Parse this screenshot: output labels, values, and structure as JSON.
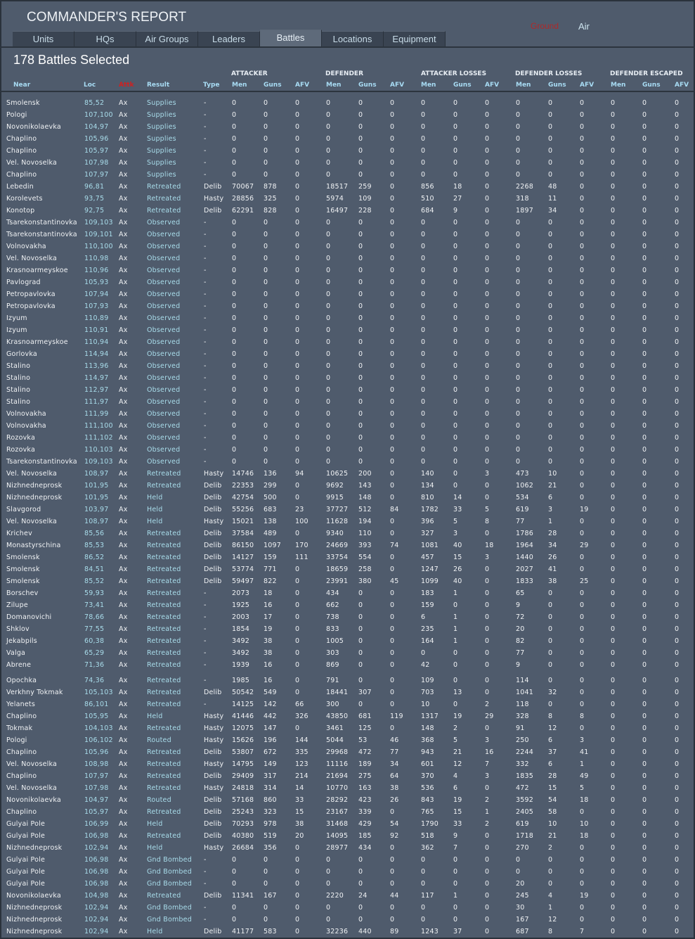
{
  "header": {
    "title": "COMMANDER'S REPORT",
    "toggle_ground": "Ground",
    "toggle_air": "Air",
    "colors": {
      "ground": "#b02828",
      "air": "#cfe6f0"
    }
  },
  "tabs": [
    "Units",
    "HQs",
    "Air Groups",
    "Leaders",
    "Battles",
    "Locations",
    "Equipment"
  ],
  "active_tab": "Battles",
  "selection_count": "178 Battles Selected",
  "column_groups": [
    "ATTACKER",
    "DEFENDER",
    "ATTACKER LOSSES",
    "DEFENDER LOSSES",
    "DEFENDER ESCAPED"
  ],
  "columns": [
    "Near",
    "Loc",
    "Attk",
    "Result",
    "Type",
    "Men",
    "Guns",
    "AFV",
    "Men",
    "Guns",
    "AFV",
    "Men",
    "Guns",
    "AFV",
    "Men",
    "Guns",
    "AFV",
    "Men",
    "Guns",
    "AFV"
  ],
  "rows": [
    [
      "Smolensk",
      "85,52",
      "Ax",
      "Supplies",
      "-",
      0,
      0,
      0,
      0,
      0,
      0,
      0,
      0,
      0,
      0,
      0,
      0,
      0,
      0,
      0
    ],
    [
      "Pologi",
      "107,100",
      "Ax",
      "Supplies",
      "-",
      0,
      0,
      0,
      0,
      0,
      0,
      0,
      0,
      0,
      0,
      0,
      0,
      0,
      0,
      0
    ],
    [
      "Novonikolaevka",
      "104,97",
      "Ax",
      "Supplies",
      "-",
      0,
      0,
      0,
      0,
      0,
      0,
      0,
      0,
      0,
      0,
      0,
      0,
      0,
      0,
      0
    ],
    [
      "Chaplino",
      "105,96",
      "Ax",
      "Supplies",
      "-",
      0,
      0,
      0,
      0,
      0,
      0,
      0,
      0,
      0,
      0,
      0,
      0,
      0,
      0,
      0
    ],
    [
      "Chaplino",
      "105,97",
      "Ax",
      "Supplies",
      "-",
      0,
      0,
      0,
      0,
      0,
      0,
      0,
      0,
      0,
      0,
      0,
      0,
      0,
      0,
      0
    ],
    [
      "Vel. Novoselka",
      "107,98",
      "Ax",
      "Supplies",
      "-",
      0,
      0,
      0,
      0,
      0,
      0,
      0,
      0,
      0,
      0,
      0,
      0,
      0,
      0,
      0
    ],
    [
      "Chaplino",
      "107,97",
      "Ax",
      "Supplies",
      "-",
      0,
      0,
      0,
      0,
      0,
      0,
      0,
      0,
      0,
      0,
      0,
      0,
      0,
      0,
      0
    ],
    [
      "Lebedin",
      "96,81",
      "Ax",
      "Retreated",
      "Delib",
      70067,
      878,
      0,
      18517,
      259,
      0,
      856,
      18,
      0,
      2268,
      48,
      0,
      0,
      0,
      0
    ],
    [
      "Korolevets",
      "93,75",
      "Ax",
      "Retreated",
      "Hasty",
      28856,
      325,
      0,
      5974,
      109,
      0,
      510,
      27,
      0,
      318,
      11,
      0,
      0,
      0,
      0
    ],
    [
      "Konotop",
      "92,75",
      "Ax",
      "Retreated",
      "Delib",
      62291,
      828,
      0,
      16497,
      228,
      0,
      684,
      9,
      0,
      1897,
      34,
      0,
      0,
      0,
      0
    ],
    [
      "Tsarekonstantinovka",
      "109,103",
      "Ax",
      "Observed",
      "-",
      0,
      0,
      0,
      0,
      0,
      0,
      0,
      0,
      0,
      0,
      0,
      0,
      0,
      0,
      0
    ],
    [
      "Tsarekonstantinovka",
      "109,101",
      "Ax",
      "Observed",
      "-",
      0,
      0,
      0,
      0,
      0,
      0,
      0,
      0,
      0,
      0,
      0,
      0,
      0,
      0,
      0
    ],
    [
      "Volnovakha",
      "110,100",
      "Ax",
      "Observed",
      "-",
      0,
      0,
      0,
      0,
      0,
      0,
      0,
      0,
      0,
      0,
      0,
      0,
      0,
      0,
      0
    ],
    [
      "Vel. Novoselka",
      "110,98",
      "Ax",
      "Observed",
      "-",
      0,
      0,
      0,
      0,
      0,
      0,
      0,
      0,
      0,
      0,
      0,
      0,
      0,
      0,
      0
    ],
    [
      "Krasnoarmeyskoe",
      "110,96",
      "Ax",
      "Observed",
      "-",
      0,
      0,
      0,
      0,
      0,
      0,
      0,
      0,
      0,
      0,
      0,
      0,
      0,
      0,
      0
    ],
    [
      "Pavlograd",
      "105,93",
      "Ax",
      "Observed",
      "-",
      0,
      0,
      0,
      0,
      0,
      0,
      0,
      0,
      0,
      0,
      0,
      0,
      0,
      0,
      0
    ],
    [
      "Petropavlovka",
      "107,94",
      "Ax",
      "Observed",
      "-",
      0,
      0,
      0,
      0,
      0,
      0,
      0,
      0,
      0,
      0,
      0,
      0,
      0,
      0,
      0
    ],
    [
      "Petropavlovka",
      "107,93",
      "Ax",
      "Observed",
      "-",
      0,
      0,
      0,
      0,
      0,
      0,
      0,
      0,
      0,
      0,
      0,
      0,
      0,
      0,
      0
    ],
    [
      "Izyum",
      "110,89",
      "Ax",
      "Observed",
      "-",
      0,
      0,
      0,
      0,
      0,
      0,
      0,
      0,
      0,
      0,
      0,
      0,
      0,
      0,
      0
    ],
    [
      "Izyum",
      "110,91",
      "Ax",
      "Observed",
      "-",
      0,
      0,
      0,
      0,
      0,
      0,
      0,
      0,
      0,
      0,
      0,
      0,
      0,
      0,
      0
    ],
    [
      "Krasnoarmeyskoe",
      "110,94",
      "Ax",
      "Observed",
      "-",
      0,
      0,
      0,
      0,
      0,
      0,
      0,
      0,
      0,
      0,
      0,
      0,
      0,
      0,
      0
    ],
    [
      "Gorlovka",
      "114,94",
      "Ax",
      "Observed",
      "-",
      0,
      0,
      0,
      0,
      0,
      0,
      0,
      0,
      0,
      0,
      0,
      0,
      0,
      0,
      0
    ],
    [
      "Stalino",
      "113,96",
      "Ax",
      "Observed",
      "-",
      0,
      0,
      0,
      0,
      0,
      0,
      0,
      0,
      0,
      0,
      0,
      0,
      0,
      0,
      0
    ],
    [
      "Stalino",
      "114,97",
      "Ax",
      "Observed",
      "-",
      0,
      0,
      0,
      0,
      0,
      0,
      0,
      0,
      0,
      0,
      0,
      0,
      0,
      0,
      0
    ],
    [
      "Stalino",
      "112,97",
      "Ax",
      "Observed",
      "-",
      0,
      0,
      0,
      0,
      0,
      0,
      0,
      0,
      0,
      0,
      0,
      0,
      0,
      0,
      0
    ],
    [
      "Stalino",
      "111,97",
      "Ax",
      "Observed",
      "-",
      0,
      0,
      0,
      0,
      0,
      0,
      0,
      0,
      0,
      0,
      0,
      0,
      0,
      0,
      0
    ],
    [
      "Volnovakha",
      "111,99",
      "Ax",
      "Observed",
      "-",
      0,
      0,
      0,
      0,
      0,
      0,
      0,
      0,
      0,
      0,
      0,
      0,
      0,
      0,
      0
    ],
    [
      "Volnovakha",
      "111,100",
      "Ax",
      "Observed",
      "-",
      0,
      0,
      0,
      0,
      0,
      0,
      0,
      0,
      0,
      0,
      0,
      0,
      0,
      0,
      0
    ],
    [
      "Rozovka",
      "111,102",
      "Ax",
      "Observed",
      "-",
      0,
      0,
      0,
      0,
      0,
      0,
      0,
      0,
      0,
      0,
      0,
      0,
      0,
      0,
      0
    ],
    [
      "Rozovka",
      "110,103",
      "Ax",
      "Observed",
      "-",
      0,
      0,
      0,
      0,
      0,
      0,
      0,
      0,
      0,
      0,
      0,
      0,
      0,
      0,
      0
    ],
    [
      "Tsarekonstantinovka",
      "109,103",
      "Ax",
      "Observed",
      "-",
      0,
      0,
      0,
      0,
      0,
      0,
      0,
      0,
      0,
      0,
      0,
      0,
      0,
      0,
      0
    ],
    [
      "Vel. Novoselka",
      "108,97",
      "Ax",
      "Retreated",
      "Hasty",
      14746,
      136,
      94,
      10625,
      200,
      0,
      140,
      0,
      3,
      473,
      10,
      0,
      0,
      0,
      0
    ],
    [
      "Nizhnedneprosk",
      "101,95",
      "Ax",
      "Retreated",
      "Delib",
      22353,
      299,
      0,
      9692,
      143,
      0,
      134,
      0,
      0,
      1062,
      21,
      0,
      0,
      0,
      0
    ],
    [
      "Nizhnedneprosk",
      "101,95",
      "Ax",
      "Held",
      "Delib",
      42754,
      500,
      0,
      9915,
      148,
      0,
      810,
      14,
      0,
      534,
      6,
      0,
      0,
      0,
      0
    ],
    [
      "Slavgorod",
      "103,97",
      "Ax",
      "Held",
      "Delib",
      55256,
      683,
      23,
      37727,
      512,
      84,
      1782,
      33,
      5,
      619,
      3,
      19,
      0,
      0,
      0
    ],
    [
      "Vel. Novoselka",
      "108,97",
      "Ax",
      "Held",
      "Hasty",
      15021,
      138,
      100,
      11628,
      194,
      0,
      396,
      5,
      8,
      77,
      1,
      0,
      0,
      0,
      0
    ],
    [
      "Krichev",
      "85,56",
      "Ax",
      "Retreated",
      "Delib",
      37584,
      489,
      0,
      9340,
      110,
      0,
      327,
      3,
      0,
      1786,
      28,
      0,
      0,
      0,
      0
    ],
    [
      "Monastyrschina",
      "85,53",
      "Ax",
      "Retreated",
      "Delib",
      86150,
      1097,
      170,
      24669,
      393,
      74,
      1081,
      40,
      18,
      1964,
      34,
      29,
      0,
      0,
      0
    ],
    [
      "Smolensk",
      "86,52",
      "Ax",
      "Retreated",
      "Delib",
      14127,
      159,
      111,
      33754,
      554,
      0,
      457,
      15,
      3,
      1440,
      26,
      0,
      0,
      0,
      0
    ],
    [
      "Smolensk",
      "84,51",
      "Ax",
      "Retreated",
      "Delib",
      53774,
      771,
      0,
      18659,
      258,
      0,
      1247,
      26,
      0,
      2027,
      41,
      0,
      0,
      0,
      0
    ],
    [
      "Smolensk",
      "85,52",
      "Ax",
      "Retreated",
      "Delib",
      59497,
      822,
      0,
      23991,
      380,
      45,
      1099,
      40,
      0,
      1833,
      38,
      25,
      0,
      0,
      0
    ],
    [
      "Borschev",
      "59,93",
      "Ax",
      "Retreated",
      "-",
      2073,
      18,
      0,
      434,
      0,
      0,
      183,
      1,
      0,
      65,
      0,
      0,
      0,
      0,
      0
    ],
    [
      "Zilupe",
      "73,41",
      "Ax",
      "Retreated",
      "-",
      1925,
      16,
      0,
      662,
      0,
      0,
      159,
      0,
      0,
      9,
      0,
      0,
      0,
      0,
      0
    ],
    [
      "Domanovichi",
      "78,66",
      "Ax",
      "Retreated",
      "-",
      2003,
      17,
      0,
      738,
      0,
      0,
      6,
      1,
      0,
      72,
      0,
      0,
      0,
      0,
      0
    ],
    [
      "Shklov",
      "77,55",
      "Ax",
      "Retreated",
      "-",
      1854,
      19,
      0,
      833,
      0,
      0,
      235,
      1,
      0,
      20,
      0,
      0,
      0,
      0,
      0
    ],
    [
      "Jekabpils",
      "60,38",
      "Ax",
      "Retreated",
      "-",
      3492,
      38,
      0,
      1005,
      0,
      0,
      164,
      1,
      0,
      82,
      0,
      0,
      0,
      0,
      0
    ],
    [
      "Valga",
      "65,29",
      "Ax",
      "Retreated",
      "-",
      3492,
      38,
      0,
      303,
      0,
      0,
      0,
      0,
      0,
      77,
      0,
      0,
      0,
      0,
      0
    ],
    [
      "Abrene",
      "71,36",
      "Ax",
      "Retreated",
      "-",
      1939,
      16,
      0,
      869,
      0,
      0,
      42,
      0,
      0,
      9,
      0,
      0,
      0,
      0,
      0
    ],
    [
      "Opochka",
      "74,36",
      "Ax",
      "Retreated",
      "-",
      1985,
      16,
      0,
      791,
      0,
      0,
      109,
      0,
      0,
      114,
      0,
      0,
      0,
      0,
      0
    ],
    [
      "Verkhny Tokmak",
      "105,103",
      "Ax",
      "Retreated",
      "Delib",
      50542,
      549,
      0,
      18441,
      307,
      0,
      703,
      13,
      0,
      1041,
      32,
      0,
      0,
      0,
      0
    ],
    [
      "Yelanets",
      "86,101",
      "Ax",
      "Retreated",
      "-",
      14125,
      142,
      66,
      300,
      0,
      0,
      10,
      0,
      2,
      118,
      0,
      0,
      0,
      0,
      0
    ],
    [
      "Chaplino",
      "105,95",
      "Ax",
      "Held",
      "Hasty",
      41446,
      442,
      326,
      43850,
      681,
      119,
      1317,
      19,
      29,
      328,
      8,
      8,
      0,
      0,
      0
    ],
    [
      "Tokmak",
      "104,103",
      "Ax",
      "Retreated",
      "Hasty",
      12075,
      147,
      0,
      3461,
      125,
      0,
      148,
      2,
      0,
      91,
      12,
      0,
      0,
      0,
      0
    ],
    [
      "Pologi",
      "106,102",
      "Ax",
      "Routed",
      "Hasty",
      15626,
      196,
      144,
      5044,
      53,
      46,
      368,
      5,
      3,
      250,
      6,
      3,
      0,
      0,
      0
    ],
    [
      "Chaplino",
      "105,96",
      "Ax",
      "Retreated",
      "Delib",
      53807,
      672,
      335,
      29968,
      472,
      77,
      943,
      21,
      16,
      2244,
      37,
      41,
      0,
      0,
      0
    ],
    [
      "Vel. Novoselka",
      "108,98",
      "Ax",
      "Retreated",
      "Hasty",
      14795,
      149,
      123,
      11116,
      189,
      34,
      601,
      12,
      7,
      332,
      6,
      1,
      0,
      0,
      0
    ],
    [
      "Chaplino",
      "107,97",
      "Ax",
      "Retreated",
      "Delib",
      29409,
      317,
      214,
      21694,
      275,
      64,
      370,
      4,
      3,
      1835,
      28,
      49,
      0,
      0,
      0
    ],
    [
      "Vel. Novoselka",
      "107,98",
      "Ax",
      "Retreated",
      "Hasty",
      24818,
      314,
      14,
      10770,
      163,
      38,
      536,
      6,
      0,
      472,
      15,
      5,
      0,
      0,
      0
    ],
    [
      "Novonikolaevka",
      "104,97",
      "Ax",
      "Routed",
      "Delib",
      57168,
      860,
      33,
      28292,
      423,
      26,
      843,
      19,
      2,
      3592,
      54,
      18,
      0,
      0,
      0
    ],
    [
      "Chaplino",
      "105,97",
      "Ax",
      "Retreated",
      "Delib",
      25243,
      323,
      15,
      23167,
      339,
      0,
      765,
      15,
      1,
      2405,
      58,
      0,
      0,
      0,
      0
    ],
    [
      "Gulyai Pole",
      "106,99",
      "Ax",
      "Held",
      "Delib",
      70293,
      978,
      38,
      31468,
      429,
      54,
      1790,
      33,
      2,
      619,
      10,
      10,
      0,
      0,
      0
    ],
    [
      "Gulyai Pole",
      "106,98",
      "Ax",
      "Retreated",
      "Delib",
      40380,
      519,
      20,
      14095,
      185,
      92,
      518,
      9,
      0,
      1718,
      21,
      18,
      0,
      0,
      0
    ],
    [
      "Nizhnedneprosk",
      "102,94",
      "Ax",
      "Held",
      "Hasty",
      26684,
      356,
      0,
      28977,
      434,
      0,
      362,
      7,
      0,
      270,
      2,
      0,
      0,
      0,
      0
    ],
    [
      "Gulyai Pole",
      "106,98",
      "Ax",
      "Gnd Bombed",
      "-",
      0,
      0,
      0,
      0,
      0,
      0,
      0,
      0,
      0,
      0,
      0,
      0,
      0,
      0,
      0
    ],
    [
      "Gulyai Pole",
      "106,98",
      "Ax",
      "Gnd Bombed",
      "-",
      0,
      0,
      0,
      0,
      0,
      0,
      0,
      0,
      0,
      0,
      0,
      0,
      0,
      0,
      0
    ],
    [
      "Gulyai Pole",
      "106,98",
      "Ax",
      "Gnd Bombed",
      "-",
      0,
      0,
      0,
      0,
      0,
      0,
      0,
      0,
      0,
      20,
      0,
      0,
      0,
      0,
      0
    ],
    [
      "Novonikolaevka",
      "104,98",
      "Ax",
      "Retreated",
      "Delib",
      11341,
      167,
      0,
      2220,
      24,
      44,
      117,
      1,
      0,
      245,
      4,
      19,
      0,
      0,
      0
    ],
    [
      "Nizhnedneprosk",
      "102,94",
      "Ax",
      "Gnd Bombed",
      "-",
      0,
      0,
      0,
      0,
      0,
      0,
      0,
      0,
      0,
      30,
      1,
      0,
      0,
      0,
      0
    ],
    [
      "Nizhnedneprosk",
      "102,94",
      "Ax",
      "Gnd Bombed",
      "-",
      0,
      0,
      0,
      0,
      0,
      0,
      0,
      0,
      0,
      167,
      12,
      0,
      0,
      0,
      0
    ],
    [
      "Nizhnedneprosk",
      "102,94",
      "Ax",
      "Held",
      "Delib",
      41177,
      583,
      0,
      32236,
      440,
      89,
      1243,
      37,
      0,
      687,
      8,
      7,
      0,
      0,
      0
    ]
  ]
}
